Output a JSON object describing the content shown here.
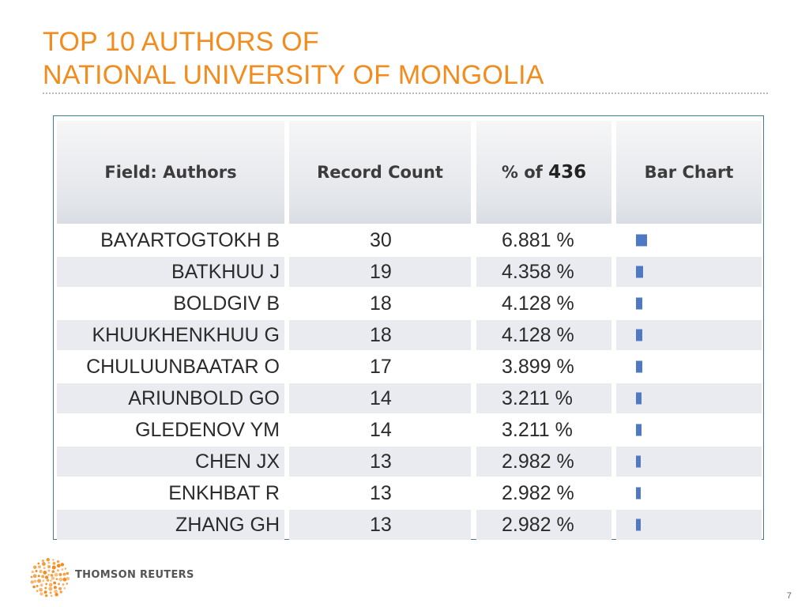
{
  "slide": {
    "title_line1": "TOP 10 AUTHORS OF",
    "title_line2": "NATIONAL UNIVERSITY OF MONGOLIA",
    "page_number": "7",
    "accent_color": "#f28c1e"
  },
  "table": {
    "headers": {
      "field": "Field: Authors",
      "count": "Record Count",
      "pct_prefix": "% of ",
      "pct_total": "436",
      "bar": "Bar Chart"
    },
    "bar_color": "#4f79c2",
    "rows": [
      {
        "author": "BAYARTOGTOKH B",
        "count": "30",
        "percent": "6.881 %",
        "share": 6.881
      },
      {
        "author": "BATKHUU J",
        "count": "19",
        "percent": "4.358 %",
        "share": 4.358
      },
      {
        "author": "BOLDGIV B",
        "count": "18",
        "percent": "4.128 %",
        "share": 4.128
      },
      {
        "author": "KHUUKHENKHUU G",
        "count": "18",
        "percent": "4.128 %",
        "share": 4.128
      },
      {
        "author": "CHULUUNBAATAR O",
        "count": "17",
        "percent": "3.899 %",
        "share": 3.899
      },
      {
        "author": "ARIUNBOLD GO",
        "count": "14",
        "percent": "3.211 %",
        "share": 3.211
      },
      {
        "author": "GLEDENOV YM",
        "count": "14",
        "percent": "3.211 %",
        "share": 3.211
      },
      {
        "author": "CHEN JX",
        "count": "13",
        "percent": "2.982 %",
        "share": 2.982
      },
      {
        "author": "ENKHBAT R",
        "count": "13",
        "percent": "2.982 %",
        "share": 2.982
      },
      {
        "author": "ZHANG GH",
        "count": "13",
        "percent": "2.982 %",
        "share": 2.982
      }
    ]
  },
  "footer": {
    "brand": "THOMSON REUTERS",
    "logo_icon": "thomson-reuters-dot-logo-icon"
  }
}
